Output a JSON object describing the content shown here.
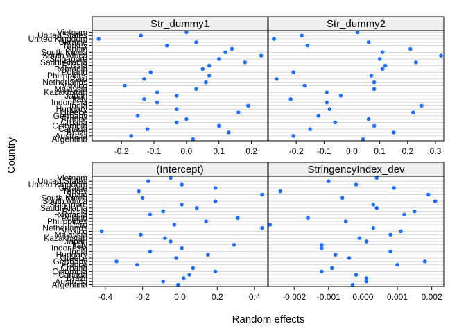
{
  "chart_data": {
    "type": "scatter",
    "xlabel": "Random effects",
    "ylabel": "Country",
    "grid": true,
    "colors": {
      "point": "#1f6fff",
      "strip_bg": "#efefef",
      "grid": "#d6d6d6",
      "frame": "#000000"
    },
    "categories_top_to_bottom": [
      "Vietnam",
      "United States",
      "United Kingdom",
      "Ukraine",
      "Turkey",
      "Spain",
      "South Korea",
      "South Africa",
      "Singapore",
      "Saudi Arabia",
      "Russia",
      "Romania",
      "Poland",
      "Philippines",
      "Peru",
      "Netherlands",
      "Mexico",
      "Malaysia",
      "Kazakhstan",
      "Japan",
      "Italy",
      "Indonesia",
      "India",
      "Hungary",
      "Greece",
      "Germany",
      "France",
      "Croatia",
      "Colombia",
      "Canada",
      "Brazil",
      "Australia",
      "Argentina"
    ],
    "panels": [
      {
        "title": "Str_dummy1",
        "xlim": [
          -0.29,
          0.25
        ],
        "ticks": [
          -0.2,
          -0.1,
          0.0,
          0.1,
          0.2
        ],
        "tick_labels": [
          "-0.2",
          "-0.1",
          "0.0",
          "0.1",
          "0.2"
        ],
        "values": [
          0.0,
          -0.14,
          -0.27,
          0.03,
          -0.06,
          0.14,
          0.12,
          0.23,
          0.1,
          0.18,
          0.07,
          0.05,
          -0.11,
          0.07,
          -0.13,
          0.06,
          -0.19,
          0.03,
          -0.09,
          -0.03,
          -0.13,
          -0.09,
          0.19,
          -0.03,
          0.16,
          -0.15,
          0.0,
          -0.03,
          0.1,
          -0.12,
          0.13,
          -0.17,
          0.02
        ]
      },
      {
        "title": "Str_dummy2",
        "xlim": [
          -0.3,
          0.33
        ],
        "ticks": [
          -0.2,
          -0.1,
          0.0,
          0.1,
          0.2,
          0.3
        ],
        "tick_labels": [
          "-0.2",
          "-0.1",
          "0.0",
          "0.1",
          "0.2",
          "0.3"
        ],
        "values": [
          0.02,
          -0.18,
          -0.28,
          0.06,
          -0.16,
          0.21,
          0.11,
          0.32,
          0.1,
          0.23,
          0.12,
          0.11,
          -0.21,
          0.07,
          -0.27,
          0.08,
          -0.17,
          0.08,
          -0.09,
          -0.04,
          -0.22,
          -0.09,
          0.25,
          -0.08,
          0.22,
          -0.12,
          0.06,
          -0.06,
          0.08,
          -0.15,
          0.15,
          -0.21,
          0.04
        ]
      },
      {
        "title": "(Intercept)",
        "xlim": [
          -0.47,
          0.47
        ],
        "ticks": [
          -0.4,
          -0.2,
          0.0,
          0.2,
          0.4
        ],
        "tick_labels": [
          "-0.4",
          "-0.2",
          "0.0",
          "0.2",
          "0.4"
        ],
        "values": [
          -0.05,
          -0.17,
          0.01,
          0.19,
          -0.22,
          0.44,
          -0.2,
          0.19,
          0.01,
          0.09,
          -0.09,
          -0.16,
          0.31,
          0.14,
          -0.03,
          0.44,
          -0.42,
          -0.21,
          -0.08,
          -0.05,
          0.29,
          0.01,
          -0.16,
          0.15,
          -0.02,
          -0.34,
          -0.23,
          0.07,
          0.19,
          0.05,
          0.02,
          -0.09,
          -0.01
        ]
      },
      {
        "title": "StringencyIndex_dev",
        "xlim": [
          -0.00275,
          0.00235
        ],
        "ticks": [
          -0.002,
          -0.001,
          0.0,
          0.001,
          0.002
        ],
        "tick_labels": [
          "-0.002",
          "-0.001",
          "0.000",
          "0.001",
          "0.002"
        ],
        "values": [
          0.0004,
          -0.001,
          -0.0002,
          0.0009,
          -0.0024,
          0.0019,
          -0.0006,
          0.0021,
          0.0003,
          0.0004,
          0.0015,
          0.0012,
          -0.0016,
          -0.0005,
          -0.0027,
          0.0003,
          0.0011,
          0.0008,
          -0.0001,
          0.0001,
          -0.0012,
          -0.0012,
          0.0008,
          -0.0008,
          -0.0004,
          0.0018,
          0.001,
          -0.0009,
          -0.0012,
          -0.0002,
          0.0001,
          0.0001,
          -0.0003
        ]
      }
    ]
  }
}
